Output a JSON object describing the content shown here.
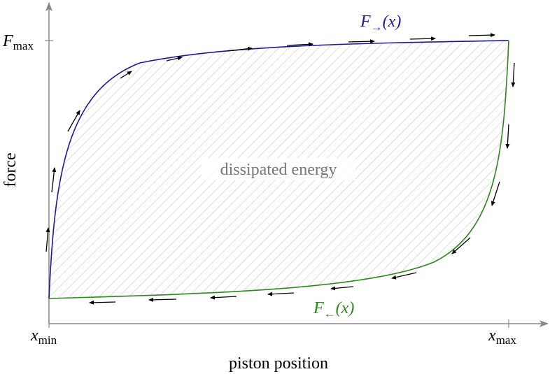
{
  "axes": {
    "y_label": "force",
    "x_label": "piston position",
    "y_tick": {
      "main": "F",
      "sub": "max"
    },
    "x_ticks": [
      {
        "main": "x",
        "sub": "min"
      },
      {
        "main": "x",
        "sub": "max"
      }
    ]
  },
  "curves": [
    {
      "main": "F",
      "sub": "→",
      "arg": "(x)"
    },
    {
      "main": "F",
      "sub": "←",
      "arg": "(x)"
    }
  ],
  "region_label": "dissipated energy"
}
